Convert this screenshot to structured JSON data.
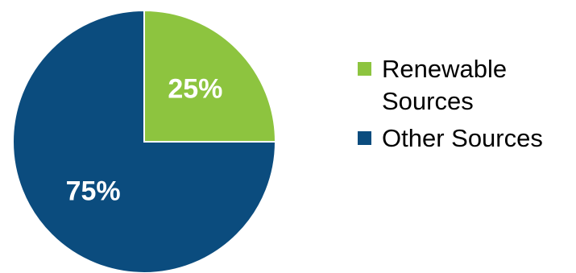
{
  "chart_data": {
    "type": "pie",
    "title": "",
    "slices": [
      {
        "label": "Renewable Sources",
        "value": 25,
        "display": "25%",
        "color": "#8dc43f"
      },
      {
        "label": "Other Sources",
        "value": 75,
        "display": "75%",
        "color": "#0b4c7e"
      }
    ],
    "start_angle": "top (12 o'clock), clockwise",
    "legend": {
      "placement": "right",
      "entries": [
        {
          "label": "Renewable Sources",
          "color": "#8dc43f"
        },
        {
          "label": "Other Sources",
          "color": "#0b4c7e"
        }
      ]
    }
  }
}
